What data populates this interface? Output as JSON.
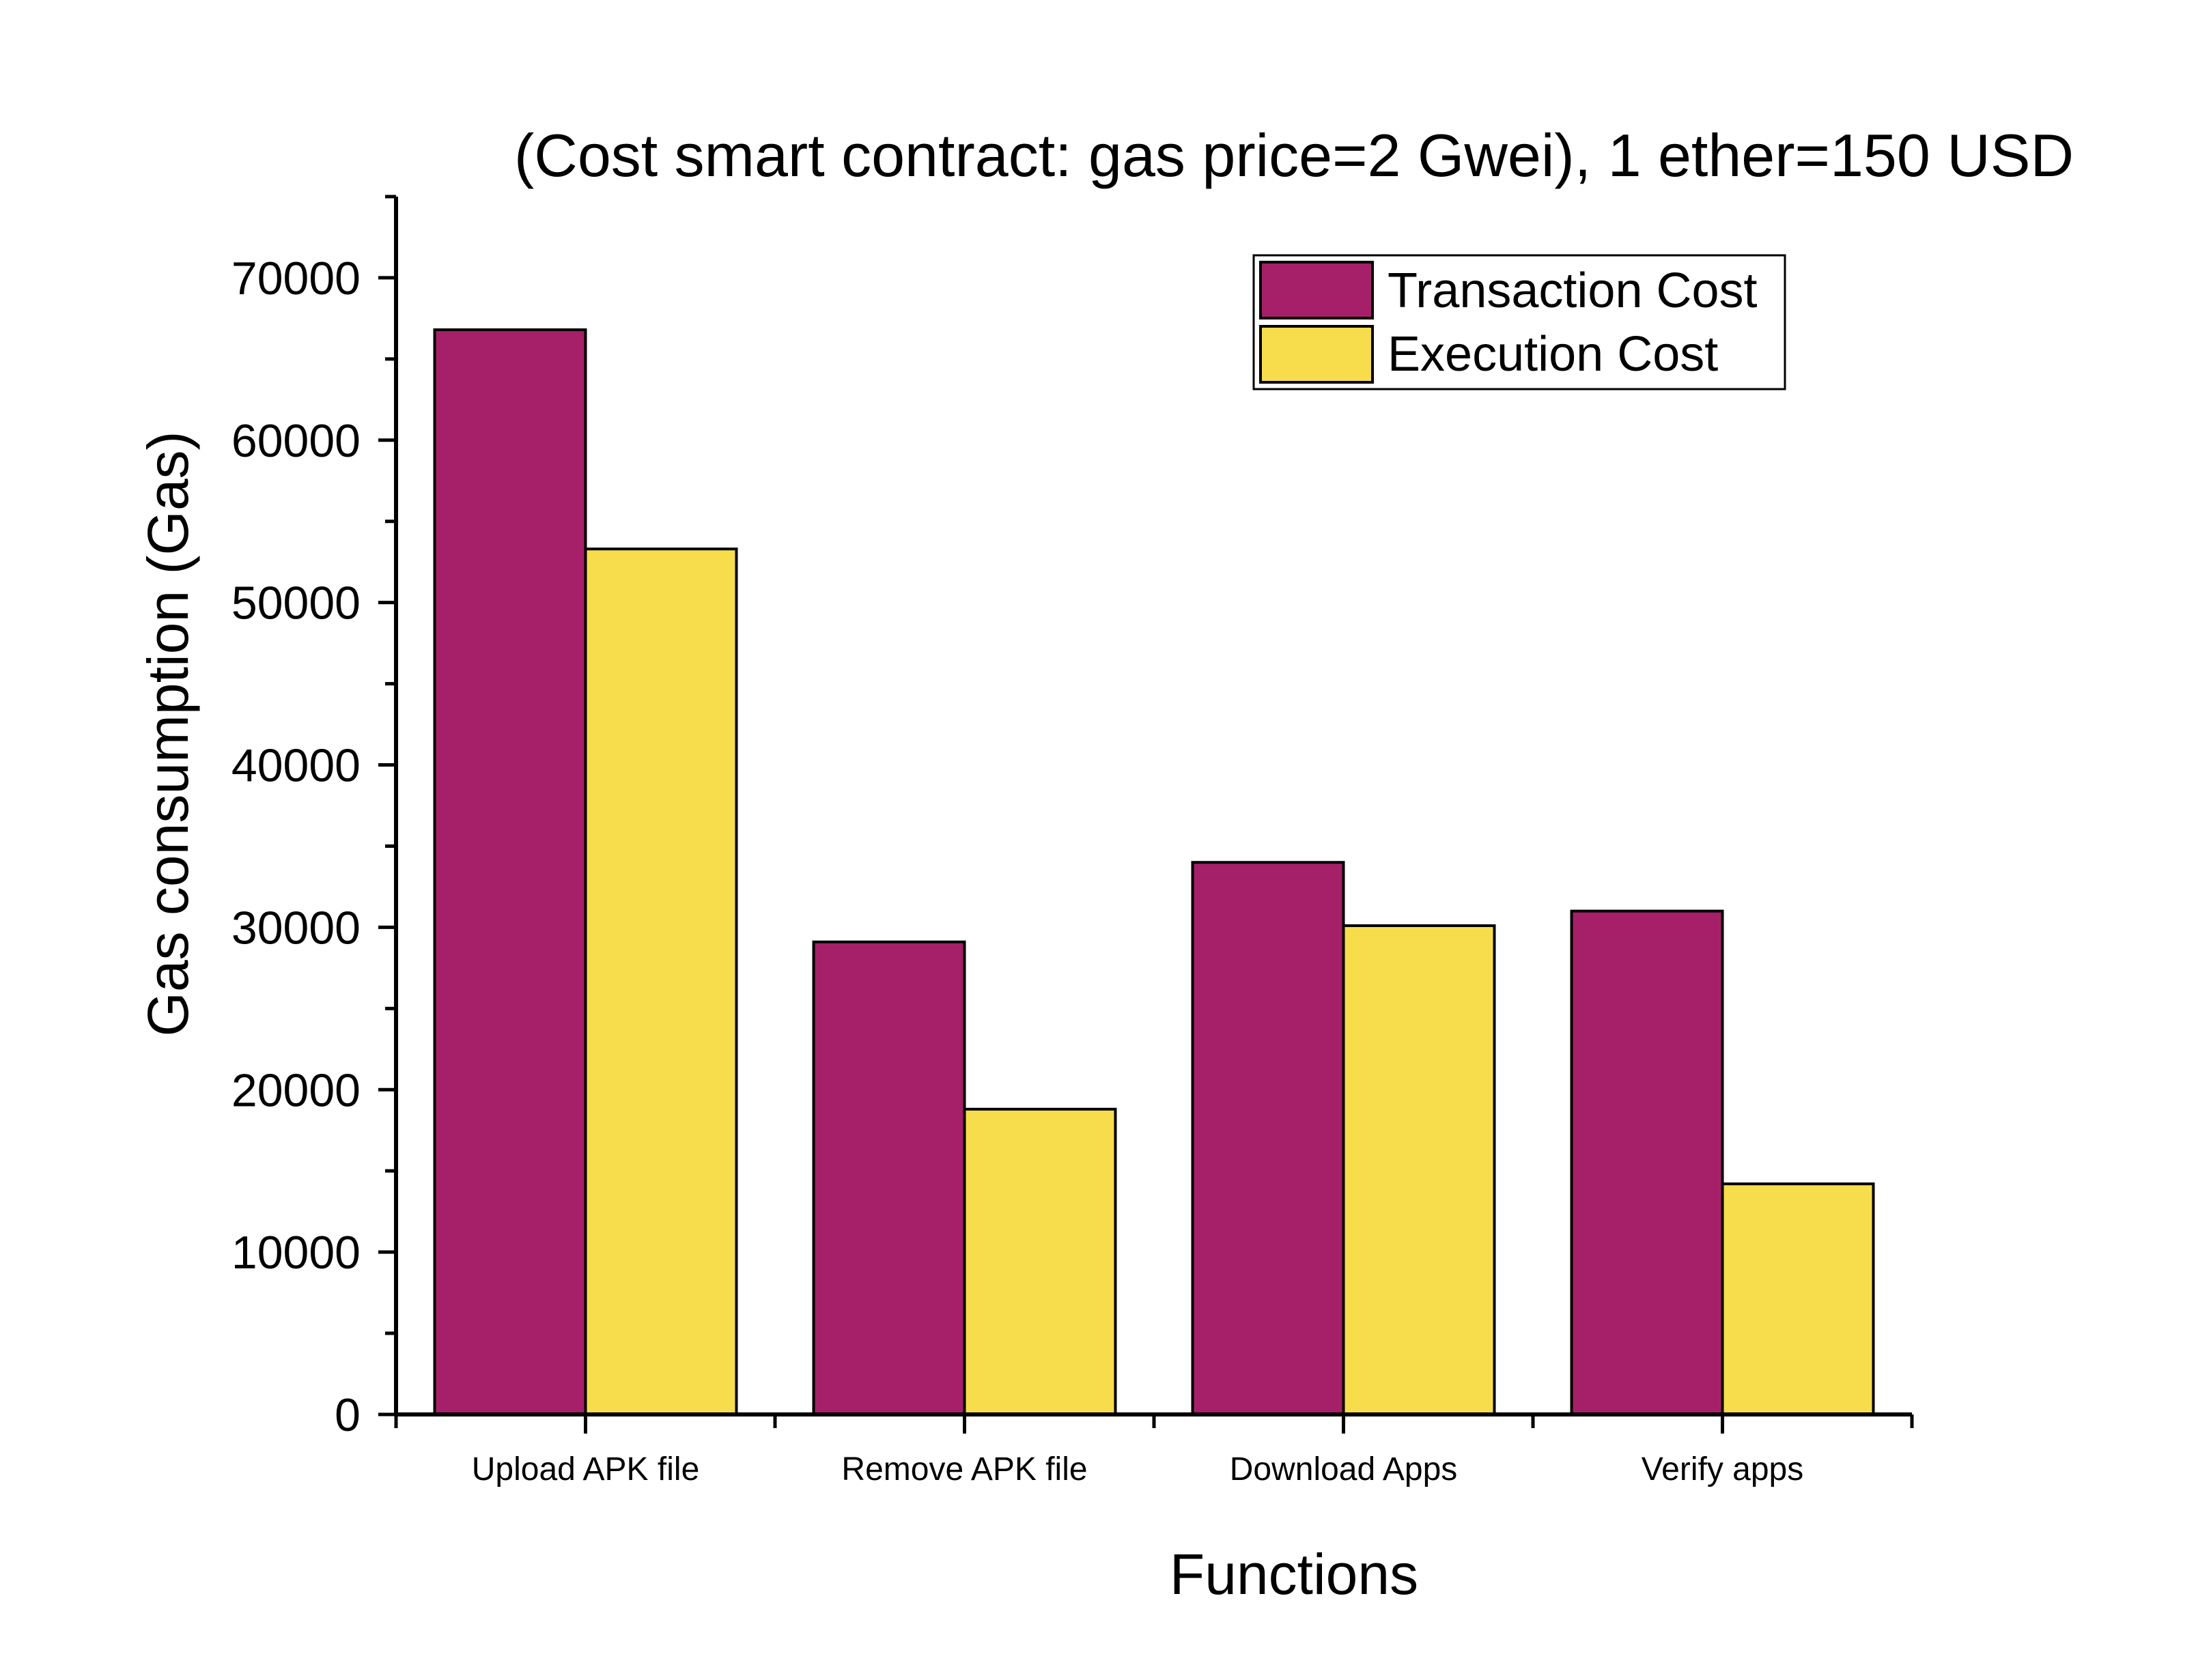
{
  "chart_data": {
    "type": "bar",
    "title": "(Cost smart contract: gas price=2 Gwei), 1 ether=150 USD",
    "xlabel": "Functions",
    "ylabel": "Gas consumption (Gas)",
    "categories": [
      "Upload APK file",
      "Remove APK file",
      "Download Apps",
      "Verify apps"
    ],
    "series": [
      {
        "name": "Transaction Cost",
        "color": "#A52068",
        "values": [
          66800,
          29100,
          34000,
          31000
        ]
      },
      {
        "name": "Execution Cost",
        "color": "#F7DD4C",
        "values": [
          53300,
          18800,
          30100,
          14200
        ]
      }
    ],
    "ylim": [
      0,
      75000
    ],
    "yticks": [
      0,
      10000,
      20000,
      30000,
      40000,
      50000,
      60000,
      70000
    ],
    "grid": false,
    "legend": "top-right"
  }
}
